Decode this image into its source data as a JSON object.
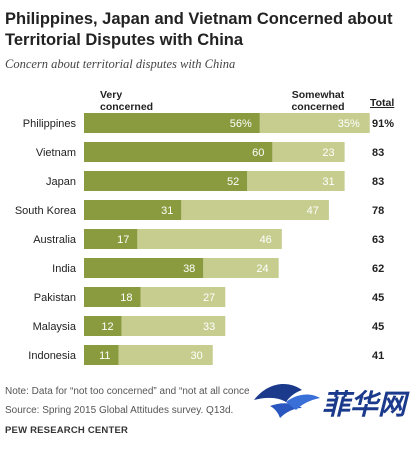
{
  "title": "Philippines, Japan and Vietnam Concerned about Territorial Disputes with China",
  "subtitle": "Concern about territorial disputes with China",
  "headers": {
    "very": "Very\nconcerned",
    "somewhat": "Somewhat\nconcerned",
    "total": "Total"
  },
  "note": "Note: Data for “not too concerned” and “not at all conce",
  "source": "Source: Spring 2015 Global Attitudes survey. Q13d.",
  "footer": "PEW RESEARCH CENTER",
  "watermark_text": "菲华网",
  "colors": {
    "very": "#8a9a3e",
    "somewhat": "#c6cd8f",
    "watermark": "#1b3a8c"
  },
  "chart_data": {
    "type": "bar",
    "orientation": "horizontal",
    "stacked": true,
    "categories": [
      "Philippines",
      "Vietnam",
      "Japan",
      "South Korea",
      "Australia",
      "India",
      "Pakistan",
      "Malaysia",
      "Indonesia"
    ],
    "series": [
      {
        "name": "Very concerned",
        "values": [
          56,
          60,
          52,
          31,
          17,
          38,
          18,
          12,
          11
        ],
        "labels": [
          "56%",
          "60",
          "52",
          "31",
          "17",
          "38",
          "18",
          "12",
          "11"
        ]
      },
      {
        "name": "Somewhat concerned",
        "values": [
          35,
          23,
          31,
          47,
          46,
          24,
          27,
          33,
          30
        ],
        "labels": [
          "35%",
          "23",
          "31",
          "47",
          "46",
          "24",
          "27",
          "33",
          "30"
        ]
      }
    ],
    "totals": [
      "91%",
      "83",
      "83",
      "78",
      "63",
      "62",
      "45",
      "45",
      "41"
    ],
    "xlim": [
      0,
      100
    ],
    "grid": false,
    "legend": "top"
  }
}
